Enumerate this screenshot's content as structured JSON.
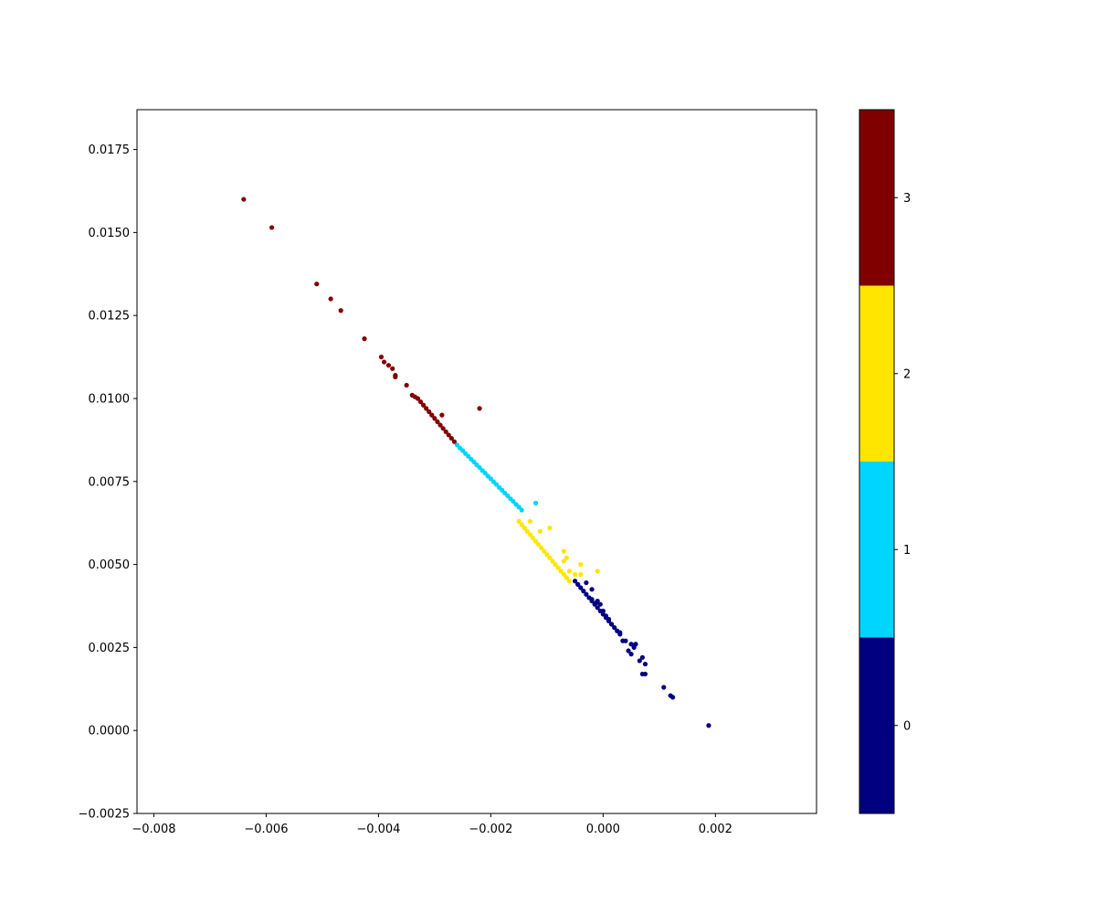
{
  "chart_data": {
    "type": "scatter",
    "title": "",
    "xlabel": "",
    "ylabel": "",
    "xlim": [
      -0.0083,
      0.0038
    ],
    "ylim": [
      -0.0025,
      0.0187
    ],
    "grid": false,
    "xticks": [
      {
        "value": -0.008,
        "label": "−0.008"
      },
      {
        "value": -0.006,
        "label": "−0.006"
      },
      {
        "value": -0.004,
        "label": "−0.004"
      },
      {
        "value": -0.002,
        "label": "−0.002"
      },
      {
        "value": 0.0,
        "label": "0.000"
      },
      {
        "value": 0.002,
        "label": "0.002"
      }
    ],
    "yticks": [
      {
        "value": -0.0025,
        "label": "−0.0025"
      },
      {
        "value": 0.0,
        "label": "0.0000"
      },
      {
        "value": 0.0025,
        "label": "0.0025"
      },
      {
        "value": 0.005,
        "label": "0.0050"
      },
      {
        "value": 0.0075,
        "label": "0.0075"
      },
      {
        "value": 0.01,
        "label": "0.0100"
      },
      {
        "value": 0.0125,
        "label": "0.0125"
      },
      {
        "value": 0.015,
        "label": "0.0150"
      },
      {
        "value": 0.0175,
        "label": "0.0175"
      }
    ],
    "colorbar": {
      "type": "discrete",
      "placement": "right",
      "range": [
        -0.5,
        3.5
      ],
      "ticks": [
        {
          "value": 0,
          "label": "0"
        },
        {
          "value": 1,
          "label": "1"
        },
        {
          "value": 2,
          "label": "2"
        },
        {
          "value": 3,
          "label": "3"
        }
      ],
      "colors": [
        "#000080",
        "#00d5ff",
        "#ffe500",
        "#800000"
      ]
    },
    "series": [
      {
        "cluster": 0,
        "color": "#000080",
        "points": [
          [
            -0.0005,
            0.0045
          ],
          [
            -0.0004,
            0.0043
          ],
          [
            -0.0003,
            0.0041
          ],
          [
            -0.0002,
            0.0039
          ],
          [
            -0.0001,
            0.0037
          ],
          [
            0.0,
            0.0035
          ],
          [
            0.0001,
            0.0033
          ],
          [
            0.0002,
            0.0031
          ],
          [
            0.0003,
            0.0029
          ],
          [
            0.0004,
            0.0027
          ],
          [
            -0.00045,
            0.0044
          ],
          [
            -0.00035,
            0.0042
          ],
          [
            -0.00025,
            0.004
          ],
          [
            -0.00015,
            0.0038
          ],
          [
            -5e-05,
            0.0036
          ],
          [
            5e-05,
            0.0034
          ],
          [
            0.00015,
            0.0032
          ],
          [
            -0.0003,
            0.00445
          ],
          [
            -0.0002,
            0.00425
          ],
          [
            -0.0001,
            0.0039
          ],
          [
            -5e-05,
            0.0038
          ],
          [
            0.0,
            0.0036
          ],
          [
            5e-05,
            0.00345
          ],
          [
            0.0001,
            0.00335
          ],
          [
            0.00015,
            0.0032
          ],
          [
            0.00025,
            0.003
          ],
          [
            0.0003,
            0.00295
          ],
          [
            0.00035,
            0.0027
          ],
          [
            0.0005,
            0.0026
          ],
          [
            0.0005,
            0.0023
          ],
          [
            0.00055,
            0.0025
          ],
          [
            0.00058,
            0.0026
          ],
          [
            0.00065,
            0.0021
          ],
          [
            0.0007,
            0.0022
          ],
          [
            0.0007,
            0.0017
          ],
          [
            0.00075,
            0.002
          ],
          [
            0.00075,
            0.0017
          ],
          [
            0.00108,
            0.0013
          ],
          [
            0.0012,
            0.00105
          ],
          [
            0.00124,
            0.001
          ],
          [
            0.00188,
            0.00015
          ],
          [
            -0.00012,
            0.00385
          ],
          [
            -0.0002,
            0.00395
          ],
          [
            0.0001,
            0.0033
          ],
          [
            0.00045,
            0.0024
          ]
        ]
      },
      {
        "cluster": 1,
        "color": "#00d5ff",
        "points": [
          [
            -0.0026,
            0.0086
          ],
          [
            -0.0025,
            0.00843
          ],
          [
            -0.0024,
            0.00826
          ],
          [
            -0.0023,
            0.00809
          ],
          [
            -0.0022,
            0.00792
          ],
          [
            -0.0021,
            0.00775
          ],
          [
            -0.002,
            0.00758
          ],
          [
            -0.0019,
            0.00741
          ],
          [
            -0.0018,
            0.00724
          ],
          [
            -0.0017,
            0.00707
          ],
          [
            -0.0016,
            0.0069
          ],
          [
            -0.0015,
            0.00673
          ],
          [
            -0.00145,
            0.00664
          ],
          [
            -0.00255,
            0.00851
          ],
          [
            -0.00245,
            0.00834
          ],
          [
            -0.00235,
            0.00817
          ],
          [
            -0.00225,
            0.008
          ],
          [
            -0.00215,
            0.00783
          ],
          [
            -0.00205,
            0.00766
          ],
          [
            -0.00195,
            0.00749
          ],
          [
            -0.00185,
            0.00732
          ],
          [
            -0.00175,
            0.00715
          ],
          [
            -0.00165,
            0.00698
          ],
          [
            -0.00155,
            0.00681
          ],
          [
            -0.0012,
            0.00685
          ]
        ]
      },
      {
        "cluster": 2,
        "color": "#ffe500",
        "points": [
          [
            -0.0015,
            0.0063
          ],
          [
            -0.0014,
            0.0061
          ],
          [
            -0.0013,
            0.0059
          ],
          [
            -0.0012,
            0.0057
          ],
          [
            -0.0011,
            0.0055
          ],
          [
            -0.001,
            0.0053
          ],
          [
            -0.0009,
            0.0051
          ],
          [
            -0.0008,
            0.0049
          ],
          [
            -0.0007,
            0.0047
          ],
          [
            -0.0006,
            0.0045
          ],
          [
            -0.00145,
            0.0062
          ],
          [
            -0.00135,
            0.006
          ],
          [
            -0.00125,
            0.0058
          ],
          [
            -0.00115,
            0.0056
          ],
          [
            -0.00105,
            0.0054
          ],
          [
            -0.00095,
            0.0052
          ],
          [
            -0.00085,
            0.005
          ],
          [
            -0.00075,
            0.0048
          ],
          [
            -0.00065,
            0.0046
          ],
          [
            -0.0013,
            0.0063
          ],
          [
            -0.00112,
            0.006
          ],
          [
            -0.00095,
            0.0061
          ],
          [
            -0.0007,
            0.0054
          ],
          [
            -0.00065,
            0.0052
          ],
          [
            -0.0004,
            0.005
          ],
          [
            -0.0005,
            0.0047
          ],
          [
            -0.0004,
            0.0047
          ],
          [
            -0.0001,
            0.0048
          ],
          [
            -0.0006,
            0.0048
          ],
          [
            -0.0007,
            0.0051
          ]
        ]
      },
      {
        "cluster": 3,
        "color": "#800000",
        "points": [
          [
            -0.0064,
            0.016
          ],
          [
            -0.0059,
            0.01515
          ],
          [
            -0.0051,
            0.01345
          ],
          [
            -0.00485,
            0.013
          ],
          [
            -0.00467,
            0.01265
          ],
          [
            -0.00425,
            0.0118
          ],
          [
            -0.00395,
            0.01125
          ],
          [
            -0.0039,
            0.0111
          ],
          [
            -0.00382,
            0.011
          ],
          [
            -0.00375,
            0.0109
          ],
          [
            -0.0037,
            0.0107
          ],
          [
            -0.0037,
            0.01065
          ],
          [
            -0.0035,
            0.0104
          ],
          [
            -0.0034,
            0.0101
          ],
          [
            -0.0033,
            0.01
          ],
          [
            -0.0032,
            0.0098
          ],
          [
            -0.0031,
            0.0096
          ],
          [
            -0.003,
            0.0094
          ],
          [
            -0.0029,
            0.0092
          ],
          [
            -0.0028,
            0.009
          ],
          [
            -0.0027,
            0.0088
          ],
          [
            -0.00265,
            0.0087
          ],
          [
            -0.00325,
            0.0099
          ],
          [
            -0.00315,
            0.0097
          ],
          [
            -0.00305,
            0.0095
          ],
          [
            -0.00295,
            0.0093
          ],
          [
            -0.00285,
            0.0091
          ],
          [
            -0.00275,
            0.0089
          ],
          [
            -0.00335,
            0.01005
          ],
          [
            -0.00287,
            0.0095
          ],
          [
            -0.0022,
            0.0097
          ]
        ]
      }
    ]
  }
}
